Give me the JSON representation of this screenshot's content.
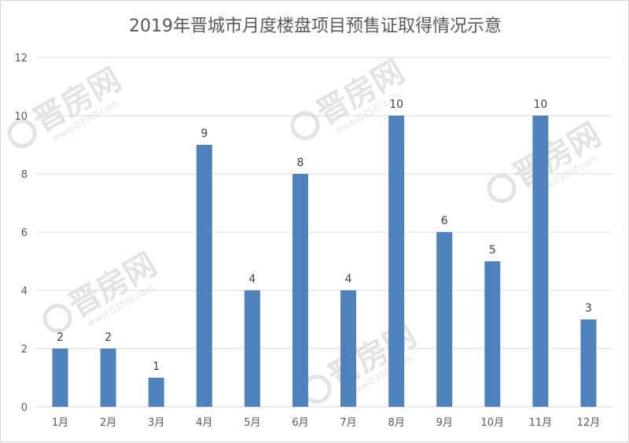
{
  "chart_data": {
    "type": "bar",
    "title": "2019年晋城市月度楼盘项目预售证取得情况示意",
    "categories": [
      "1月",
      "2月",
      "3月",
      "4月",
      "5月",
      "6月",
      "7月",
      "8月",
      "9月",
      "10月",
      "11月",
      "12月"
    ],
    "values": [
      2,
      2,
      1,
      9,
      4,
      8,
      4,
      10,
      6,
      5,
      10,
      3
    ],
    "ylim": [
      0,
      12
    ],
    "yticks": [
      "0",
      "2",
      "4",
      "6",
      "8",
      "10",
      "12"
    ],
    "grid": true,
    "bar_color": "#4f81bd",
    "xlabel": "",
    "ylabel": ""
  },
  "watermark": {
    "text": "晋房网",
    "sub": "www.0356f.com"
  }
}
